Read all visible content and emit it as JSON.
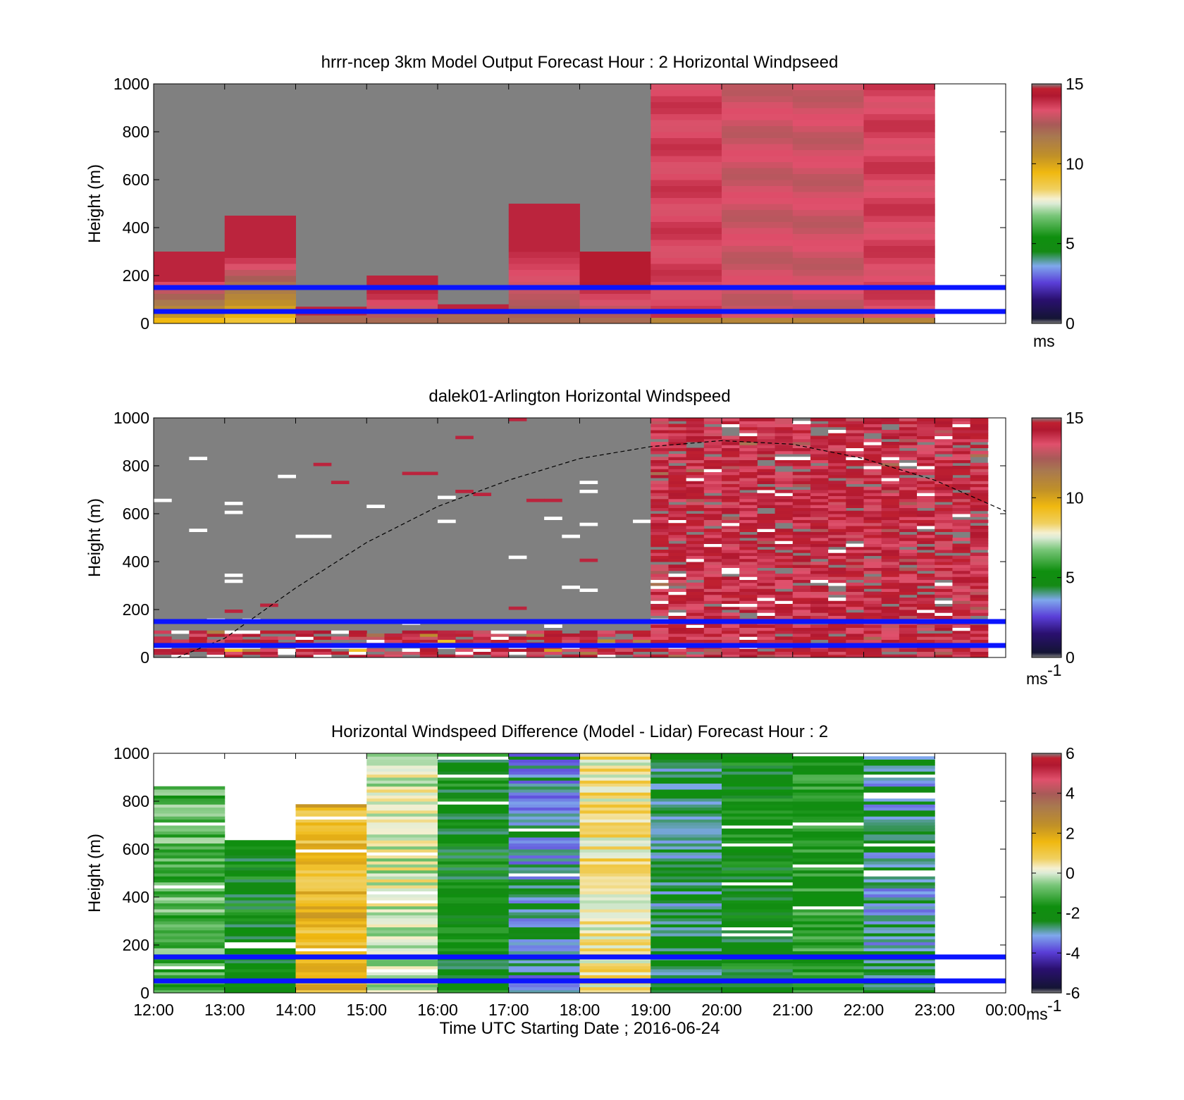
{
  "figure": {
    "background": "#ffffff"
  },
  "panels": [
    {
      "title": "hrrr-ncep 3km Model Output   Forecast Hour : 2 Horizontal Windpseed",
      "ylabel": "Height (m)",
      "colorbar": {
        "ticks": [
          "0",
          "5",
          "10",
          "15"
        ],
        "unit": "ms",
        "unit_sup": "",
        "min": 0,
        "max": 15
      }
    },
    {
      "title": "dalek01-Arlington  Horizontal Windspeed",
      "ylabel": "Height (m)",
      "colorbar": {
        "ticks": [
          "0",
          "5",
          "10",
          "15"
        ],
        "unit": "ms",
        "unit_sup": "-1",
        "min": 0,
        "max": 15
      }
    },
    {
      "title": "Horizontal Windspeed Difference (Model - Lidar) Forecast Hour : 2",
      "ylabel": "Height (m)",
      "colorbar": {
        "ticks": [
          "-6",
          "-4",
          "-2",
          "0",
          "2",
          "4",
          "6"
        ],
        "unit": "ms",
        "unit_sup": "-1",
        "min": -6,
        "max": 6
      }
    }
  ],
  "y_ticks": [
    "0",
    "200",
    "400",
    "600",
    "800",
    "1000"
  ],
  "x_ticks": [
    "12:00",
    "13:00",
    "14:00",
    "15:00",
    "16:00",
    "17:00",
    "18:00",
    "19:00",
    "20:00",
    "21:00",
    "22:00",
    "23:00",
    "00:00"
  ],
  "xlabel": "Time UTC  Starting Date ; 2016-06-24",
  "chart_data": [
    {
      "type": "heatmap",
      "title": "hrrr-ncep 3km Model Output   Forecast Hour : 2 Horizontal Windpseed",
      "ylabel": "Height (m)",
      "ylim": [
        0,
        1000
      ],
      "xlim": [
        "12:00",
        "00:00"
      ],
      "hours": [
        "12:00",
        "13:00",
        "14:00",
        "15:00",
        "16:00",
        "17:00",
        "18:00",
        "19:00",
        "20:00",
        "21:00",
        "22:00"
      ],
      "data_top_height_m": [
        300,
        450,
        70,
        200,
        80,
        500,
        300,
        1000,
        1000,
        1000,
        1000
      ],
      "approx_upper_speed_ms": [
        14,
        14,
        14,
        14,
        14,
        14,
        14.5,
        13.5,
        13,
        13,
        13.5
      ],
      "approx_near_surface_speed_ms": [
        9.5,
        9,
        12,
        12,
        12,
        12,
        12,
        11,
        11,
        11,
        11
      ],
      "reference_lines_height_m": [
        150,
        50
      ],
      "colorbar_range": [
        0,
        15
      ],
      "no_data_color": "#808080"
    },
    {
      "type": "heatmap",
      "title": "dalek01-Arlington  Horizontal Windspeed",
      "ylabel": "Height (m)",
      "ylim": [
        0,
        1000
      ],
      "xlim": [
        "12:00",
        "00:00"
      ],
      "segments": [
        {
          "start": "12:00",
          "end": "19:00",
          "data_top_height_m": 120,
          "approx_speed_ms": 14
        },
        {
          "start": "19:00",
          "end": "23:45",
          "data_top_height_m": 1000,
          "approx_speed_ms": 14
        }
      ],
      "curve": {
        "style": "dashed",
        "x": [
          "12:20",
          "13:00",
          "14:00",
          "15:00",
          "16:00",
          "17:00",
          "18:00",
          "19:00",
          "20:00",
          "21:00",
          "22:00",
          "23:00",
          "00:00"
        ],
        "y": [
          0,
          80,
          290,
          480,
          630,
          740,
          830,
          880,
          905,
          890,
          830,
          740,
          610
        ]
      },
      "reference_lines_height_m": [
        150,
        50
      ],
      "colorbar_range": [
        0,
        15
      ],
      "no_data_color": "#808080"
    },
    {
      "type": "heatmap",
      "title": "Horizontal Windspeed Difference (Model - Lidar) Forecast Hour : 2",
      "ylabel": "Height (m)",
      "xlabel": "Time UTC  Starting Date ; 2016-06-24",
      "ylim": [
        0,
        1000
      ],
      "xlim": [
        "12:00",
        "00:00"
      ],
      "hours": [
        "12:00",
        "13:00",
        "14:00",
        "15:00",
        "16:00",
        "17:00",
        "18:00",
        "19:00",
        "20:00",
        "21:00",
        "22:00"
      ],
      "data_top_height_m": [
        860,
        640,
        790,
        1000,
        1000,
        1000,
        1000,
        1000,
        1000,
        990,
        990
      ],
      "approx_difference_ms": [
        -1,
        -2,
        1.5,
        0,
        -2,
        -3,
        0.5,
        -2.5,
        -2,
        -1.5,
        -2.8
      ],
      "reference_lines_height_m": [
        150,
        50
      ],
      "colorbar_range": [
        -6,
        6
      ]
    }
  ]
}
